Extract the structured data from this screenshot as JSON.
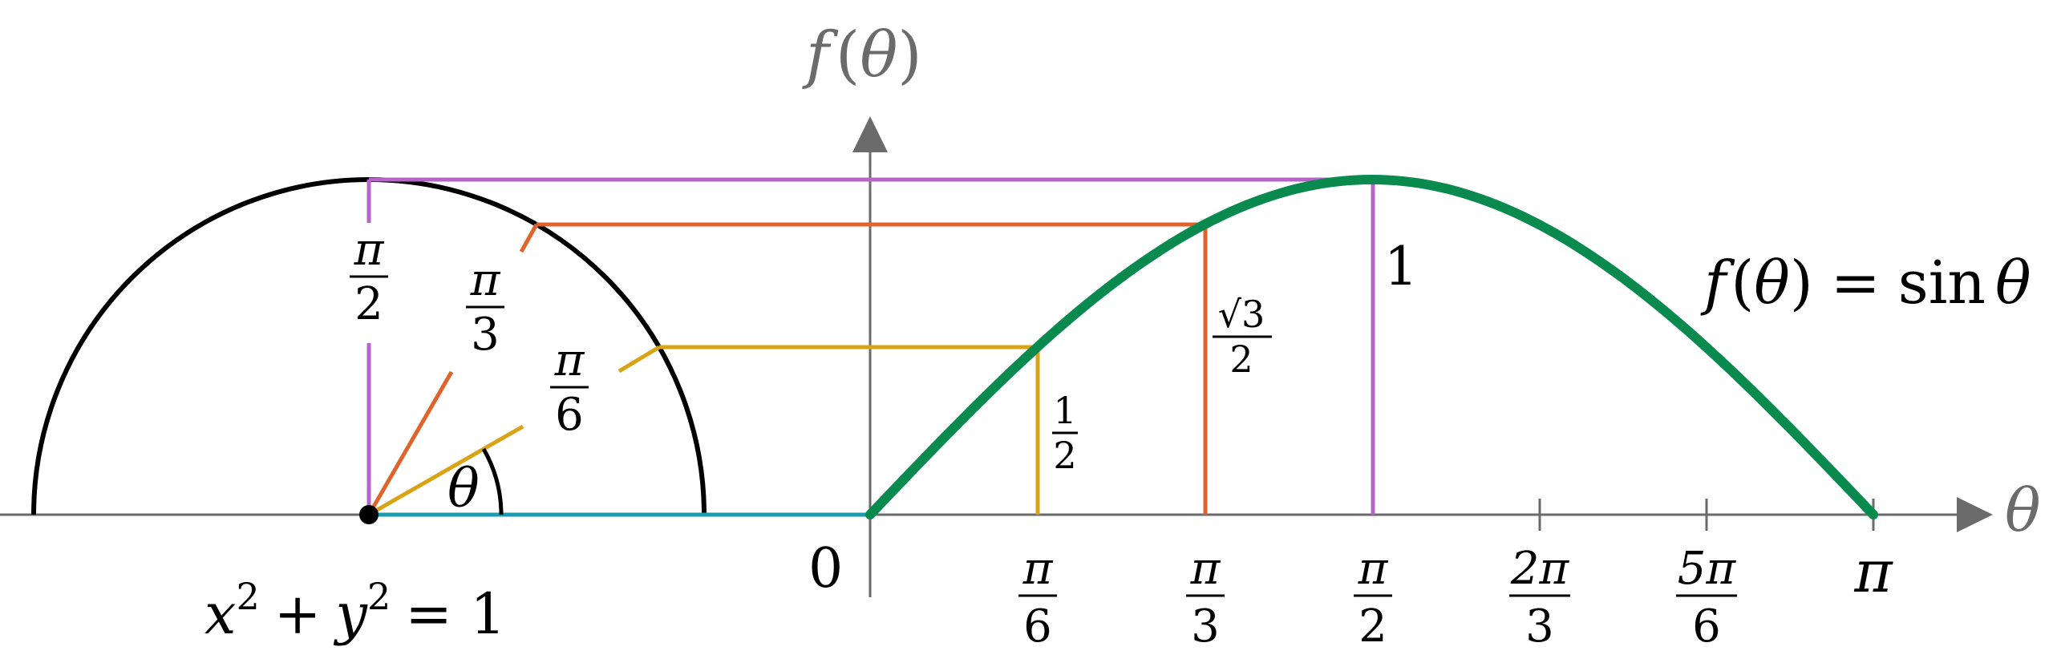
{
  "axis_labels": {
    "y_axis_f": "f",
    "y_axis_open": "(",
    "y_axis_theta": "θ",
    "y_axis_close": ")",
    "x_axis": "θ",
    "origin": "0"
  },
  "x_ticks": [
    {
      "num": "π",
      "den": "6"
    },
    {
      "num": "π",
      "den": "3"
    },
    {
      "num": "π",
      "den": "2"
    },
    {
      "num": "2π",
      "den": "3"
    },
    {
      "num": "5π",
      "den": "6"
    },
    {
      "single": "π"
    }
  ],
  "values": {
    "half_num": "1",
    "half_den": "2",
    "sqrt3_num": "√3",
    "sqrt3_den": "2",
    "one": "1"
  },
  "circle_angle_labels": [
    {
      "num": "π",
      "den": "2"
    },
    {
      "num": "π",
      "den": "3"
    },
    {
      "num": "π",
      "den": "6"
    }
  ],
  "theta_label": "θ",
  "circle_equation": {
    "x": "x",
    "x_exp": "2",
    "plus": "+",
    "y": "y",
    "y_exp": "2",
    "eq": "= 1"
  },
  "curve_label": {
    "f": "f",
    "open": "(",
    "theta": "θ",
    "close": ")",
    "eq": "=",
    "sin": "sin",
    "theta2": "θ"
  },
  "colors": {
    "axis": "#6b6b6b",
    "circle": "#000000",
    "sine_curve": "#0b8a50",
    "pi_over_6": "#d9a316",
    "pi_over_3": "#e0632c",
    "pi_over_2": "#b565c8",
    "baseline": "#1a9bb0"
  }
}
